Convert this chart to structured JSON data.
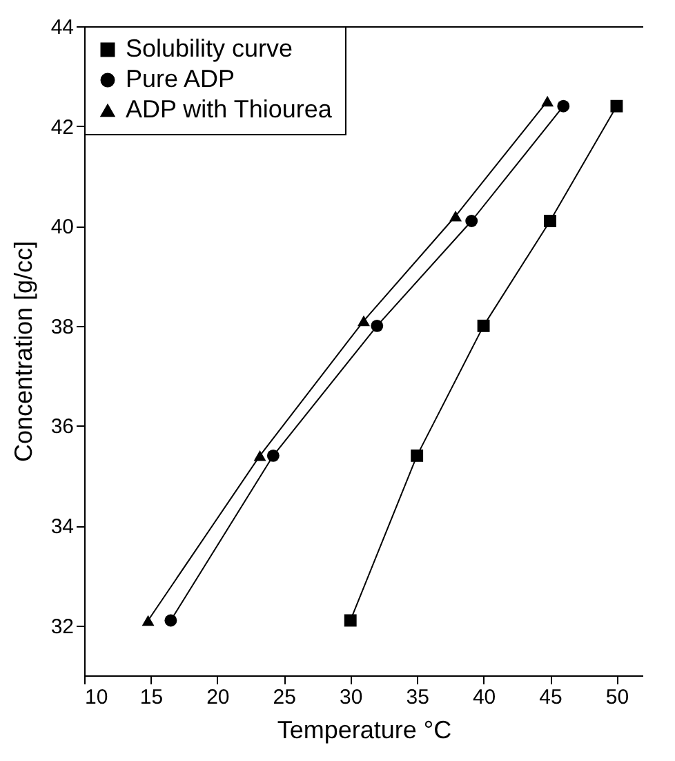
{
  "chart_data": {
    "type": "line",
    "xlabel": "Temperature °C",
    "ylabel": "Concentration [g/cc]",
    "xlim": [
      10,
      52
    ],
    "xticks": [
      10,
      15,
      20,
      25,
      30,
      35,
      40,
      45,
      50
    ],
    "ylim": [
      31,
      44
    ],
    "yticks": [
      32,
      34,
      36,
      38,
      40,
      42,
      44
    ],
    "grid": false,
    "legend": "top left",
    "line_style": "solid",
    "series": [
      {
        "name": "Solubility curve",
        "color": "#000000",
        "marker": "square",
        "x": [
          30,
          35,
          40,
          45,
          50
        ],
        "values": [
          32.1,
          35.4,
          38.0,
          40.1,
          42.4
        ]
      },
      {
        "name": "Pure ADP",
        "color": "#000000",
        "marker": "circle",
        "x": [
          16.5,
          24.2,
          32.0,
          39.1,
          46.0
        ],
        "values": [
          32.1,
          35.4,
          38.0,
          40.1,
          42.4
        ]
      },
      {
        "name": "ADP with Thiourea",
        "color": "#000000",
        "marker": "triangle",
        "x": [
          14.8,
          23.2,
          31.0,
          37.9,
          44.8
        ],
        "values": [
          32.1,
          35.4,
          38.1,
          40.2,
          42.5
        ]
      }
    ]
  }
}
